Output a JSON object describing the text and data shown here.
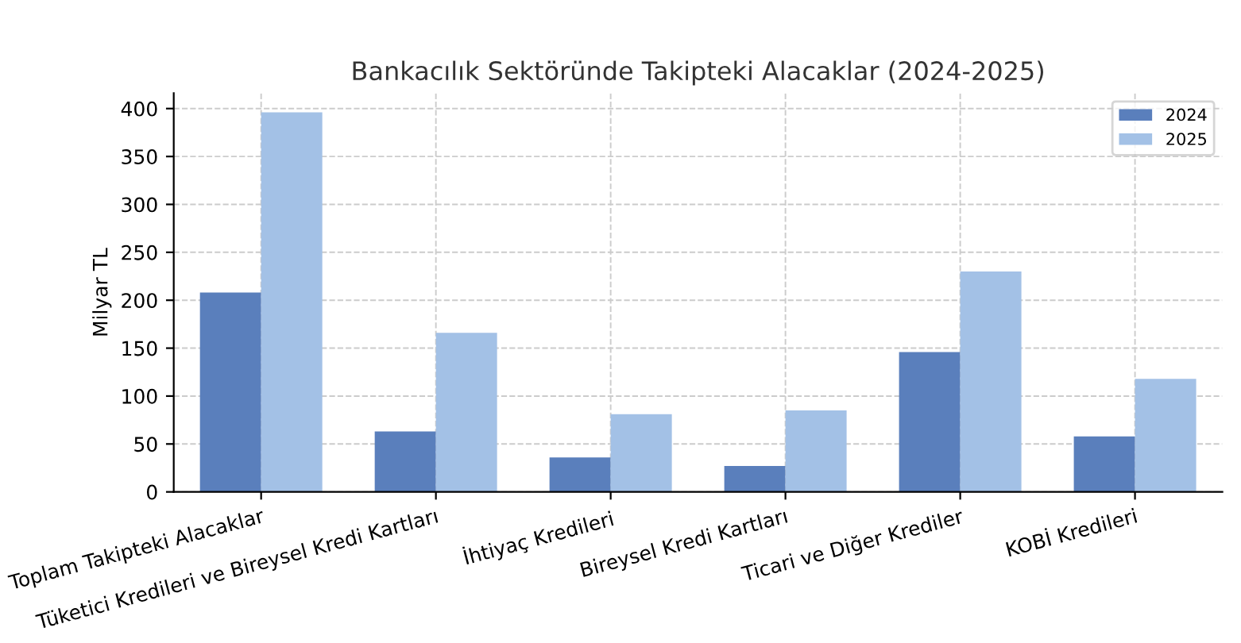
{
  "chart_data": {
    "type": "bar",
    "title": "Bankacılık Sektöründe Takipteki Alacaklar (2024-2025)",
    "ylabel": "Milyar TL",
    "categories": [
      "Toplam Takipteki Alacaklar",
      "Tüketici Kredileri ve Bireysel Kredi Kartları",
      "İhtiyaç Kredileri",
      "Bireysel Kredi Kartları",
      "Ticari ve Diğer Krediler",
      "KOBİ Kredileri"
    ],
    "series": [
      {
        "name": "2024",
        "color": "#5a7fbc",
        "values": [
          208,
          63,
          36,
          27,
          146,
          58
        ]
      },
      {
        "name": "2025",
        "color": "#a3c1e6",
        "values": [
          396,
          166,
          81,
          85,
          230,
          118
        ]
      }
    ],
    "ylim": [
      0,
      416
    ],
    "yticks": [
      0,
      50,
      100,
      150,
      200,
      250,
      300,
      350,
      400
    ],
    "grid": true,
    "legend": "top right"
  }
}
